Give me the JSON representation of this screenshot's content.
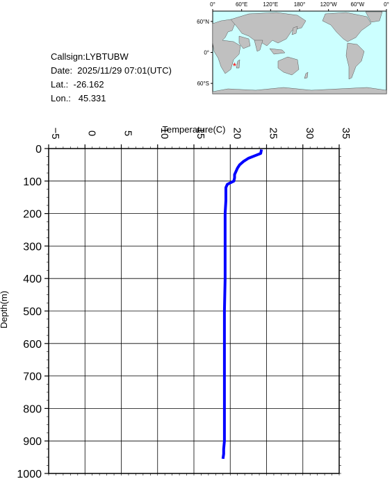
{
  "info": {
    "callsign": "Callsign:LYBTUBW",
    "date": "Date:  2025/11/29 07:01(UTC)",
    "lat": "Lat.:  -26.162",
    "lon": "Lon.:   45.331"
  },
  "map": {
    "lon_labels": [
      "0°",
      "60°E",
      "120°E",
      "180°",
      "120°W",
      "60°W",
      "0°"
    ],
    "lat_labels": [
      "60°N",
      "0°",
      "60°S"
    ],
    "ocean_color": "#ccffff",
    "land_color": "#c0c0c0",
    "marker": {
      "lon": 45.331,
      "lat": -26.162,
      "symbol": "*",
      "color": "#ff0000"
    }
  },
  "chart_data": {
    "type": "line",
    "xlabel": "Temperature(C)",
    "ylabel": "Depth(m)",
    "xlim": [
      -5,
      35
    ],
    "ylim": [
      1000,
      0
    ],
    "x_ticks": [
      "-5",
      "0",
      "5",
      "10",
      "15",
      "20",
      "25",
      "30",
      "35"
    ],
    "y_ticks": [
      "0",
      "100",
      "200",
      "300",
      "400",
      "500",
      "600",
      "700",
      "800",
      "900",
      "1000"
    ],
    "grid": true,
    "series": [
      {
        "color": "#0000ff",
        "temperature": [
          24.3,
          24.2,
          23.4,
          22.5,
          21.8,
          21.3,
          21.0,
          20.8,
          20.6,
          20.6,
          20.5,
          19.6,
          19.4,
          19.4,
          19.3,
          19.3,
          19.3,
          19.2,
          19.2,
          19.2,
          19.2,
          19.2,
          19.2,
          19.1,
          19.1,
          19.0
        ],
        "depth": [
          3,
          15,
          22,
          30,
          40,
          50,
          60,
          70,
          80,
          90,
          100,
          110,
          120,
          160,
          200,
          300,
          400,
          500,
          600,
          700,
          800,
          850,
          900,
          925,
          940,
          955
        ]
      }
    ]
  }
}
